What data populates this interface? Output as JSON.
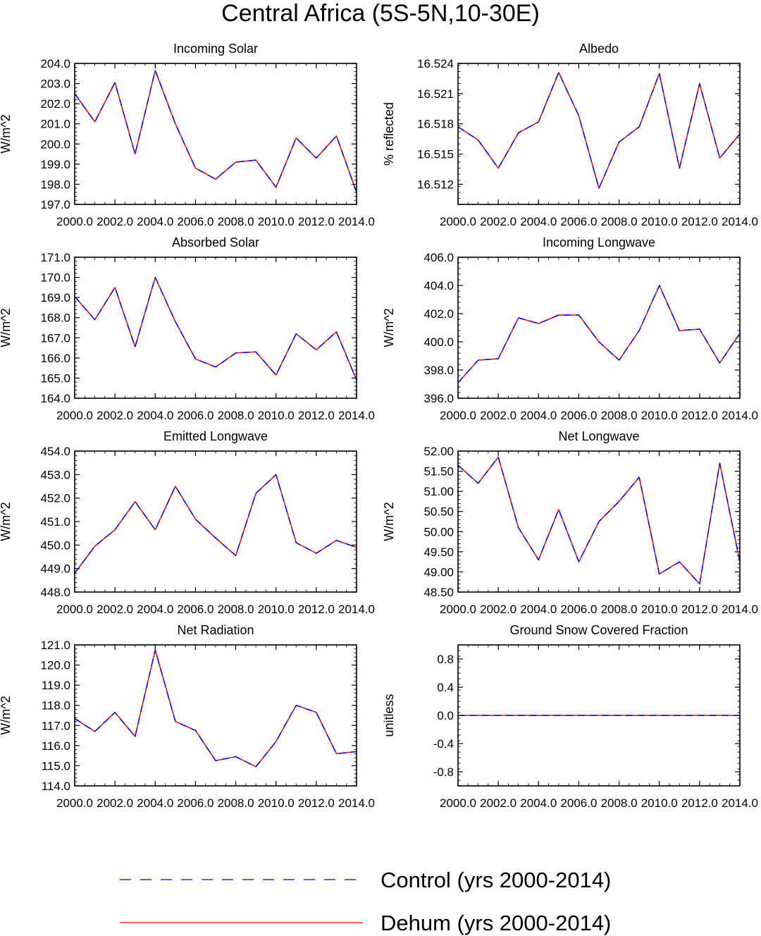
{
  "figure_title": "Central Africa (5S-5N,10-30E)",
  "legend": [
    {
      "label": "Control (yrs 2000-2014)",
      "color": "#0000ff",
      "style": "dashed"
    },
    {
      "label": "Dehum (yrs 2000-2014)",
      "color": "#ff0000",
      "style": "solid"
    }
  ],
  "chart_data": [
    {
      "type": "line",
      "title": "Incoming Solar",
      "ylabel": "W/m^2",
      "xlim": [
        2000,
        2014
      ],
      "ylim": [
        197,
        204
      ],
      "yticks": [
        197,
        198,
        199,
        200,
        201,
        202,
        203,
        204
      ],
      "ytick_labels": [
        "197.0",
        "198.0",
        "199.0",
        "200.0",
        "201.0",
        "202.0",
        "203.0",
        "204.0"
      ],
      "xticks": [
        2000,
        2002,
        2004,
        2006,
        2008,
        2010,
        2012,
        2014
      ],
      "xtick_labels": [
        "2000.0",
        "2002.0",
        "2004.0",
        "2006.0",
        "2008.0",
        "2010.0",
        "2012.0",
        "2014.0"
      ],
      "x": [
        2000,
        2001,
        2002,
        2003,
        2004,
        2005,
        2006,
        2007,
        2008,
        2009,
        2010,
        2011,
        2012,
        2013,
        2014
      ],
      "series": [
        {
          "name": "Control (yrs 2000-2014)",
          "values": [
            202.5,
            201.1,
            203.05,
            199.5,
            203.65,
            201.0,
            198.8,
            198.25,
            199.1,
            199.2,
            197.85,
            200.3,
            199.3,
            200.4,
            197.6
          ]
        },
        {
          "name": "Dehum (yrs 2000-2014)",
          "values": [
            202.5,
            201.1,
            203.05,
            199.5,
            203.65,
            201.0,
            198.8,
            198.25,
            199.1,
            199.2,
            197.85,
            200.3,
            199.3,
            200.4,
            197.6
          ]
        }
      ]
    },
    {
      "type": "line",
      "title": "Albedo",
      "ylabel": "% reflected",
      "xlim": [
        2000,
        2014
      ],
      "ylim": [
        16.51,
        16.524
      ],
      "yticks": [
        16.512,
        16.515,
        16.518,
        16.521,
        16.524
      ],
      "ytick_labels": [
        "16.512",
        "16.515",
        "16.518",
        "16.521",
        "16.524"
      ],
      "xticks": [
        2000,
        2002,
        2004,
        2006,
        2008,
        2010,
        2012,
        2014
      ],
      "xtick_labels": [
        "2000.0",
        "2002.0",
        "2004.0",
        "2006.0",
        "2008.0",
        "2010.0",
        "2012.0",
        "2014.0"
      ],
      "x": [
        2000,
        2001,
        2002,
        2003,
        2004,
        2005,
        2006,
        2007,
        2008,
        2009,
        2010,
        2011,
        2012,
        2013,
        2014
      ],
      "series": [
        {
          "name": "Control (yrs 2000-2014)",
          "values": [
            16.5177,
            16.5164,
            16.5136,
            16.5171,
            16.5182,
            16.5231,
            16.5188,
            16.5116,
            16.5162,
            16.5177,
            16.523,
            16.5136,
            16.522,
            16.5146,
            16.517
          ]
        },
        {
          "name": "Dehum (yrs 2000-2014)",
          "values": [
            16.5177,
            16.5164,
            16.5136,
            16.5171,
            16.5182,
            16.5231,
            16.5188,
            16.5116,
            16.5162,
            16.5177,
            16.523,
            16.5136,
            16.522,
            16.5146,
            16.517
          ]
        }
      ]
    },
    {
      "type": "line",
      "title": "Absorbed Solar",
      "ylabel": "W/m^2",
      "xlim": [
        2000,
        2014
      ],
      "ylim": [
        164,
        171
      ],
      "yticks": [
        164,
        165,
        166,
        167,
        168,
        169,
        170,
        171
      ],
      "ytick_labels": [
        "164.0",
        "165.0",
        "166.0",
        "167.0",
        "168.0",
        "169.0",
        "170.0",
        "171.0"
      ],
      "xticks": [
        2000,
        2002,
        2004,
        2006,
        2008,
        2010,
        2012,
        2014
      ],
      "xtick_labels": [
        "2000.0",
        "2002.0",
        "2004.0",
        "2006.0",
        "2008.0",
        "2010.0",
        "2012.0",
        "2014.0"
      ],
      "x": [
        2000,
        2001,
        2002,
        2003,
        2004,
        2005,
        2006,
        2007,
        2008,
        2009,
        2010,
        2011,
        2012,
        2013,
        2014
      ],
      "series": [
        {
          "name": "Control (yrs 2000-2014)",
          "values": [
            169.05,
            167.9,
            169.5,
            166.55,
            170.0,
            167.8,
            165.95,
            165.55,
            166.25,
            166.3,
            165.15,
            167.2,
            166.4,
            167.3,
            164.9
          ]
        },
        {
          "name": "Dehum (yrs 2000-2014)",
          "values": [
            169.05,
            167.9,
            169.5,
            166.55,
            170.0,
            167.8,
            165.95,
            165.55,
            166.25,
            166.3,
            165.15,
            167.2,
            166.4,
            167.3,
            164.9
          ]
        }
      ]
    },
    {
      "type": "line",
      "title": "Incoming Longwave",
      "ylabel": "W/m^2",
      "xlim": [
        2000,
        2014
      ],
      "ylim": [
        396,
        406
      ],
      "yticks": [
        396,
        398,
        400,
        402,
        404,
        406
      ],
      "ytick_labels": [
        "396.0",
        "398.0",
        "400.0",
        "402.0",
        "404.0",
        "406.0"
      ],
      "xticks": [
        2000,
        2002,
        2004,
        2006,
        2008,
        2010,
        2012,
        2014
      ],
      "xtick_labels": [
        "2000.0",
        "2002.0",
        "2004.0",
        "2006.0",
        "2008.0",
        "2010.0",
        "2012.0",
        "2014.0"
      ],
      "x": [
        2000,
        2001,
        2002,
        2003,
        2004,
        2005,
        2006,
        2007,
        2008,
        2009,
        2010,
        2011,
        2012,
        2013,
        2014
      ],
      "series": [
        {
          "name": "Control (yrs 2000-2014)",
          "values": [
            397.1,
            398.7,
            398.8,
            401.7,
            401.3,
            401.9,
            401.9,
            400.0,
            398.7,
            400.8,
            404.0,
            400.8,
            400.9,
            398.5,
            400.6
          ]
        },
        {
          "name": "Dehum (yrs 2000-2014)",
          "values": [
            397.1,
            398.7,
            398.8,
            401.7,
            401.3,
            401.9,
            401.9,
            400.0,
            398.7,
            400.8,
            404.0,
            400.8,
            400.9,
            398.5,
            400.6
          ]
        }
      ]
    },
    {
      "type": "line",
      "title": "Emitted Longwave",
      "ylabel": "W/m^2",
      "xlim": [
        2000,
        2014
      ],
      "ylim": [
        448,
        454
      ],
      "yticks": [
        448,
        449,
        450,
        451,
        452,
        453,
        454
      ],
      "ytick_labels": [
        "448.0",
        "449.0",
        "450.0",
        "451.0",
        "452.0",
        "453.0",
        "454.0"
      ],
      "xticks": [
        2000,
        2002,
        2004,
        2006,
        2008,
        2010,
        2012,
        2014
      ],
      "xtick_labels": [
        "2000.0",
        "2002.0",
        "2004.0",
        "2006.0",
        "2008.0",
        "2010.0",
        "2012.0",
        "2014.0"
      ],
      "x": [
        2000,
        2001,
        2002,
        2003,
        2004,
        2005,
        2006,
        2007,
        2008,
        2009,
        2010,
        2011,
        2012,
        2013,
        2014
      ],
      "series": [
        {
          "name": "Control (yrs 2000-2014)",
          "values": [
            448.8,
            449.95,
            450.65,
            451.85,
            450.65,
            452.5,
            451.1,
            450.3,
            449.55,
            452.2,
            453.0,
            450.1,
            449.65,
            450.2,
            449.9
          ]
        },
        {
          "name": "Dehum (yrs 2000-2014)",
          "values": [
            448.8,
            449.95,
            450.65,
            451.85,
            450.65,
            452.5,
            451.1,
            450.3,
            449.55,
            452.2,
            453.0,
            450.1,
            449.65,
            450.2,
            449.9
          ]
        }
      ]
    },
    {
      "type": "line",
      "title": "Net Longwave",
      "ylabel": "W/m^2",
      "xlim": [
        2000,
        2014
      ],
      "ylim": [
        48.5,
        52.0
      ],
      "yticks": [
        48.5,
        49.0,
        49.5,
        50.0,
        50.5,
        51.0,
        51.5,
        52.0
      ],
      "ytick_labels": [
        "48.50",
        "49.00",
        "49.50",
        "50.00",
        "50.50",
        "51.00",
        "51.50",
        "52.00"
      ],
      "xticks": [
        2000,
        2002,
        2004,
        2006,
        2008,
        2010,
        2012,
        2014
      ],
      "xtick_labels": [
        "2000.0",
        "2002.0",
        "2004.0",
        "2006.0",
        "2008.0",
        "2010.0",
        "2012.0",
        "2014.0"
      ],
      "x": [
        2000,
        2001,
        2002,
        2003,
        2004,
        2005,
        2006,
        2007,
        2008,
        2009,
        2010,
        2011,
        2012,
        2013,
        2014
      ],
      "series": [
        {
          "name": "Control (yrs 2000-2014)",
          "values": [
            51.65,
            51.2,
            51.85,
            50.1,
            49.3,
            50.55,
            49.25,
            50.25,
            50.75,
            51.35,
            48.95,
            49.25,
            48.7,
            51.7,
            49.25
          ]
        },
        {
          "name": "Dehum (yrs 2000-2014)",
          "values": [
            51.65,
            51.2,
            51.85,
            50.1,
            49.3,
            50.55,
            49.25,
            50.25,
            50.75,
            51.35,
            48.95,
            49.25,
            48.7,
            51.7,
            49.25
          ]
        }
      ]
    },
    {
      "type": "line",
      "title": "Net Radiation",
      "ylabel": "W/m^2",
      "xlim": [
        2000,
        2014
      ],
      "ylim": [
        114,
        121
      ],
      "yticks": [
        114,
        115,
        116,
        117,
        118,
        119,
        120,
        121
      ],
      "ytick_labels": [
        "114.0",
        "115.0",
        "116.0",
        "117.0",
        "118.0",
        "119.0",
        "120.0",
        "121.0"
      ],
      "xticks": [
        2000,
        2002,
        2004,
        2006,
        2008,
        2010,
        2012,
        2014
      ],
      "xtick_labels": [
        "2000.0",
        "2002.0",
        "2004.0",
        "2006.0",
        "2008.0",
        "2010.0",
        "2012.0",
        "2014.0"
      ],
      "x": [
        2000,
        2001,
        2002,
        2003,
        2004,
        2005,
        2006,
        2007,
        2008,
        2009,
        2010,
        2011,
        2012,
        2013,
        2014
      ],
      "series": [
        {
          "name": "Control (yrs 2000-2014)",
          "values": [
            117.35,
            116.7,
            117.65,
            116.45,
            120.75,
            117.2,
            116.75,
            115.25,
            115.45,
            114.95,
            116.2,
            118.0,
            117.65,
            115.6,
            115.7
          ]
        },
        {
          "name": "Dehum (yrs 2000-2014)",
          "values": [
            117.35,
            116.7,
            117.65,
            116.45,
            120.75,
            117.2,
            116.75,
            115.25,
            115.45,
            114.95,
            116.2,
            118.0,
            117.65,
            115.6,
            115.7
          ]
        }
      ]
    },
    {
      "type": "line",
      "title": "Ground Snow Covered Fraction",
      "ylabel": "unitless",
      "xlim": [
        2000,
        2014
      ],
      "ylim": [
        -1.0,
        1.0
      ],
      "yticks": [
        -0.8,
        -0.4,
        0.0,
        0.4,
        0.8
      ],
      "ytick_labels": [
        "-0.8",
        "-0.4",
        "0.0",
        "0.4",
        "0.8"
      ],
      "xticks": [
        2000,
        2002,
        2004,
        2006,
        2008,
        2010,
        2012,
        2014
      ],
      "xtick_labels": [
        "2000.0",
        "2002.0",
        "2004.0",
        "2006.0",
        "2008.0",
        "2010.0",
        "2012.0",
        "2014.0"
      ],
      "x": [
        2000,
        2001,
        2002,
        2003,
        2004,
        2005,
        2006,
        2007,
        2008,
        2009,
        2010,
        2011,
        2012,
        2013,
        2014
      ],
      "series": [
        {
          "name": "Control (yrs 2000-2014)",
          "values": [
            0,
            0,
            0,
            0,
            0,
            0,
            0,
            0,
            0,
            0,
            0,
            0,
            0,
            0,
            0
          ]
        },
        {
          "name": "Dehum (yrs 2000-2014)",
          "values": [
            0,
            0,
            0,
            0,
            0,
            0,
            0,
            0,
            0,
            0,
            0,
            0,
            0,
            0,
            0
          ]
        }
      ]
    }
  ]
}
